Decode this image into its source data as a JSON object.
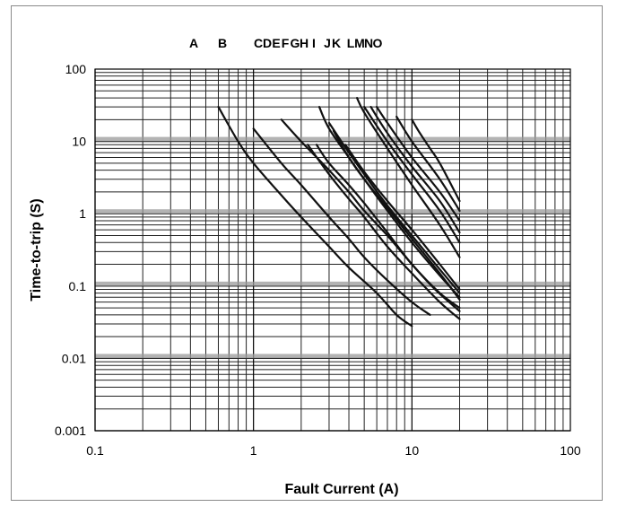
{
  "chart_data": {
    "type": "line",
    "title": "",
    "top_letters": [
      "A",
      "B",
      "C",
      "D",
      "E",
      "F",
      "G",
      "H",
      "I",
      "J",
      "K",
      "L",
      "M",
      "N",
      "O"
    ],
    "xlabel": "Fault Current (A)",
    "ylabel": "Time-to-trip (S)",
    "x_scale": "log",
    "y_scale": "log",
    "xlim": [
      0.1,
      100
    ],
    "ylim": [
      0.001,
      100
    ],
    "x_ticks": [
      "0.1",
      "1",
      "10",
      "100"
    ],
    "y_ticks": [
      "100",
      "10",
      "1",
      "0.1",
      "0.01",
      "0.001"
    ],
    "grid": true,
    "series": [
      {
        "points": [
          [
            0.6,
            30
          ],
          [
            0.8,
            10
          ],
          [
            1.0,
            5
          ],
          [
            1.5,
            1.8
          ],
          [
            2,
            0.9
          ],
          [
            3,
            0.35
          ],
          [
            4,
            0.18
          ],
          [
            6,
            0.08
          ],
          [
            8,
            0.04
          ],
          [
            10,
            0.028
          ]
        ]
      },
      {
        "points": [
          [
            1.0,
            15
          ],
          [
            1.5,
            5
          ],
          [
            2,
            2.5
          ],
          [
            3,
            0.9
          ],
          [
            4,
            0.45
          ],
          [
            5,
            0.25
          ],
          [
            7,
            0.12
          ],
          [
            10,
            0.06
          ],
          [
            13,
            0.04
          ]
        ]
      },
      {
        "points": [
          [
            1.5,
            20
          ],
          [
            2,
            10
          ],
          [
            3,
            4
          ],
          [
            4,
            2
          ],
          [
            5,
            1.1
          ],
          [
            7,
            0.5
          ],
          [
            10,
            0.2
          ],
          [
            14,
            0.09
          ],
          [
            20,
            0.045
          ]
        ]
      },
      {
        "points": [
          [
            2.2,
            9
          ],
          [
            3,
            3.5
          ],
          [
            4,
            1.6
          ],
          [
            5,
            0.9
          ],
          [
            7,
            0.35
          ],
          [
            10,
            0.15
          ],
          [
            15,
            0.06
          ],
          [
            20,
            0.035
          ]
        ]
      },
      {
        "points": [
          [
            2.5,
            9
          ],
          [
            3,
            5
          ],
          [
            4,
            2.5
          ],
          [
            5,
            1.4
          ],
          [
            7,
            0.55
          ],
          [
            10,
            0.2
          ],
          [
            15,
            0.08
          ],
          [
            20,
            0.05
          ]
        ]
      },
      {
        "points": [
          [
            2.6,
            30
          ],
          [
            3,
            15
          ],
          [
            4,
            6
          ],
          [
            5,
            3
          ],
          [
            7,
            1.1
          ],
          [
            10,
            0.4
          ],
          [
            15,
            0.14
          ],
          [
            20,
            0.07
          ]
        ]
      },
      {
        "points": [
          [
            3.0,
            18
          ],
          [
            4,
            7
          ],
          [
            5,
            3.5
          ],
          [
            7,
            1.3
          ],
          [
            10,
            0.5
          ],
          [
            15,
            0.17
          ],
          [
            20,
            0.08
          ]
        ]
      },
      {
        "points": [
          [
            3.2,
            14
          ],
          [
            4,
            6
          ],
          [
            5,
            3
          ],
          [
            7,
            1.2
          ],
          [
            10,
            0.45
          ],
          [
            15,
            0.15
          ],
          [
            20,
            0.065
          ]
        ]
      },
      {
        "points": [
          [
            3.8,
            9
          ],
          [
            5,
            3.8
          ],
          [
            7,
            1.5
          ],
          [
            10,
            0.6
          ],
          [
            15,
            0.2
          ],
          [
            20,
            0.09
          ]
        ]
      },
      {
        "points": [
          [
            4.5,
            40
          ],
          [
            5,
            25
          ],
          [
            7,
            8
          ],
          [
            10,
            2.5
          ],
          [
            15,
            0.7
          ],
          [
            20,
            0.25
          ]
        ]
      },
      {
        "points": [
          [
            5,
            30
          ],
          [
            7,
            10
          ],
          [
            10,
            3.5
          ],
          [
            15,
            1.1
          ],
          [
            20,
            0.4
          ]
        ]
      },
      {
        "points": [
          [
            5.5,
            30
          ],
          [
            7,
            13
          ],
          [
            10,
            4.5
          ],
          [
            15,
            1.5
          ],
          [
            20,
            0.55
          ]
        ]
      },
      {
        "points": [
          [
            6,
            30
          ],
          [
            7,
            18
          ],
          [
            10,
            6
          ],
          [
            15,
            2
          ],
          [
            20,
            0.8
          ]
        ]
      },
      {
        "points": [
          [
            8,
            22
          ],
          [
            10,
            10
          ],
          [
            15,
            3
          ],
          [
            20,
            1.1
          ]
        ]
      },
      {
        "points": [
          [
            10,
            20
          ],
          [
            11,
            14
          ],
          [
            13,
            8
          ],
          [
            15,
            5
          ],
          [
            20,
            1.5
          ]
        ]
      }
    ]
  }
}
